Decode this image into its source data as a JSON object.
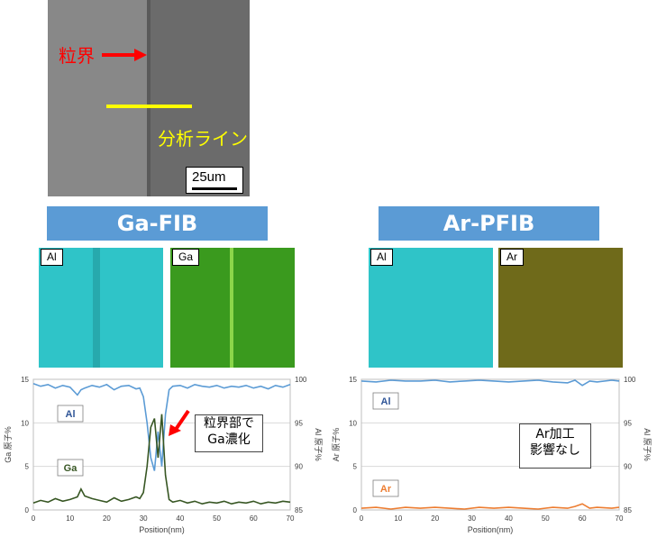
{
  "sem": {
    "grain_boundary_label": "粒界",
    "analysis_line_label": "分析ライン",
    "scale_bar_label": "25um"
  },
  "panels": {
    "ga_fib": {
      "title": "Ga-FIB",
      "map_left_label": "Al",
      "map_right_label": "Ga",
      "annotation": [
        "粒界部で",
        "Ga濃化"
      ]
    },
    "ar_pfib": {
      "title": "Ar-PFIB",
      "map_left_label": "Al",
      "map_right_label": "Ar",
      "annotation": [
        "Ar加工",
        "影響なし"
      ]
    }
  },
  "colors": {
    "banner": "#5b9bd5",
    "al_map": "#2fc4c8",
    "ga_map": "#3a9a1e",
    "ar_map": "#6f6a1a",
    "al_line": "#5b9bd5",
    "ga_line": "#375623",
    "ar_line": "#ed7d31",
    "arrow": "#ff0000",
    "analysis_line": "#ffff00"
  },
  "chart_data": [
    {
      "type": "line",
      "xlabel": "Position(nm)",
      "ylabel": "Ga 原子%",
      "y2label": "Al 原子%",
      "xlim": [
        0,
        70
      ],
      "ylim": [
        0,
        15
      ],
      "y2lim": [
        85,
        100
      ],
      "xticks": [
        0,
        10,
        20,
        30,
        40,
        50,
        60,
        70
      ],
      "yticks": [
        0,
        5,
        10,
        15
      ],
      "y2ticks": [
        85,
        90,
        95,
        100
      ],
      "series": [
        {
          "name": "Al",
          "axis": "right",
          "x": [
            0,
            2,
            4,
            6,
            8,
            10,
            12,
            13,
            14,
            16,
            18,
            20,
            22,
            24,
            26,
            28,
            29,
            30,
            31,
            32,
            33,
            34,
            35,
            36,
            37,
            38,
            40,
            42,
            44,
            46,
            48,
            50,
            52,
            54,
            56,
            58,
            60,
            62,
            64,
            66,
            68,
            70
          ],
          "y": [
            99.5,
            99.2,
            99.4,
            99.0,
            99.3,
            99.1,
            98.2,
            98.8,
            99.0,
            99.3,
            99.1,
            99.4,
            98.8,
            99.2,
            99.3,
            98.9,
            99.0,
            98.0,
            95.0,
            91.0,
            89.5,
            94.0,
            90.0,
            96.0,
            98.8,
            99.2,
            99.3,
            99.0,
            99.4,
            99.2,
            99.1,
            99.3,
            99.0,
            99.2,
            99.1,
            99.3,
            99.0,
            99.2,
            98.9,
            99.3,
            99.1,
            99.4
          ]
        },
        {
          "name": "Ga",
          "axis": "left",
          "x": [
            0,
            2,
            4,
            6,
            8,
            10,
            12,
            13,
            14,
            16,
            18,
            20,
            22,
            24,
            26,
            28,
            29,
            30,
            31,
            32,
            33,
            34,
            35,
            36,
            37,
            38,
            40,
            42,
            44,
            46,
            48,
            50,
            52,
            54,
            56,
            58,
            60,
            62,
            64,
            66,
            68,
            70
          ],
          "y": [
            0.8,
            1.1,
            0.9,
            1.3,
            1.0,
            1.2,
            1.5,
            2.4,
            1.6,
            1.3,
            1.1,
            0.9,
            1.4,
            1.0,
            1.2,
            1.5,
            1.3,
            2.0,
            5.0,
            9.5,
            10.5,
            6.0,
            11.0,
            4.0,
            1.2,
            0.9,
            1.1,
            0.8,
            1.0,
            0.7,
            0.9,
            0.8,
            1.0,
            0.7,
            0.9,
            0.8,
            1.0,
            0.7,
            0.9,
            0.8,
            1.0,
            0.9
          ]
        }
      ]
    },
    {
      "type": "line",
      "xlabel": "Position(nm)",
      "ylabel": "Ar 原子%",
      "y2label": "Al 原子%",
      "xlim": [
        0,
        70
      ],
      "ylim": [
        0,
        15
      ],
      "y2lim": [
        85,
        100
      ],
      "xticks": [
        0,
        10,
        20,
        30,
        40,
        50,
        60,
        70
      ],
      "yticks": [
        0,
        5,
        10,
        15
      ],
      "y2ticks": [
        85,
        90,
        95,
        100
      ],
      "series": [
        {
          "name": "Al",
          "axis": "right",
          "x": [
            0,
            4,
            8,
            12,
            16,
            20,
            24,
            28,
            32,
            36,
            40,
            44,
            48,
            52,
            56,
            58,
            60,
            62,
            64,
            68,
            70
          ],
          "y": [
            99.8,
            99.7,
            99.9,
            99.8,
            99.8,
            99.9,
            99.7,
            99.8,
            99.9,
            99.8,
            99.7,
            99.8,
            99.9,
            99.7,
            99.6,
            99.9,
            99.3,
            99.8,
            99.7,
            99.9,
            99.8
          ]
        },
        {
          "name": "Ar",
          "axis": "left",
          "x": [
            0,
            4,
            8,
            12,
            16,
            20,
            24,
            28,
            32,
            36,
            40,
            44,
            48,
            52,
            56,
            58,
            60,
            62,
            64,
            68,
            70
          ],
          "y": [
            0.2,
            0.3,
            0.1,
            0.3,
            0.2,
            0.3,
            0.2,
            0.1,
            0.3,
            0.2,
            0.3,
            0.2,
            0.1,
            0.3,
            0.2,
            0.4,
            0.7,
            0.2,
            0.3,
            0.2,
            0.3
          ]
        }
      ]
    }
  ]
}
